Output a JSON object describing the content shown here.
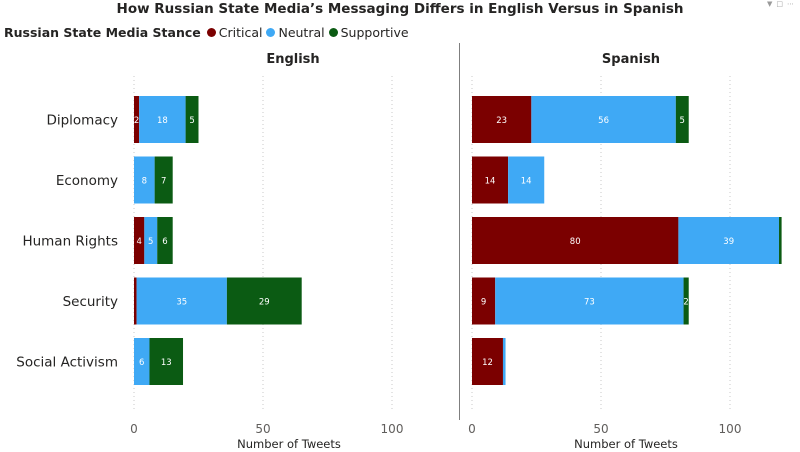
{
  "chart_data": {
    "type": "bar",
    "orientation": "horizontal",
    "stacked": true,
    "title": "How Russian State Media’s Messaging Differs in English Versus in Spanish",
    "legend": {
      "title": "Russian State Media Stance",
      "placement": "top-left",
      "entries": [
        "Critical",
        "Neutral",
        "Supportive"
      ]
    },
    "colors": {
      "Critical": "#7b0000",
      "Neutral": "#3fa9f5",
      "Supportive": "#0b5b13"
    },
    "categories": [
      "Diplomacy",
      "Economy",
      "Human Rights",
      "Security",
      "Social Activism"
    ],
    "xlabel": "Number of Tweets",
    "xlim": [
      0,
      120
    ],
    "xticks": [
      0,
      50,
      100
    ],
    "xtick_labels": [
      "0",
      "50",
      "100"
    ],
    "gridlines": "vertical-dotted",
    "panels": [
      {
        "title": "English",
        "series": [
          {
            "name": "Critical",
            "values": [
              2,
              0,
              4,
              1,
              0
            ],
            "labels": [
              "2",
              "",
              "4",
              "",
              ""
            ]
          },
          {
            "name": "Neutral",
            "values": [
              18,
              8,
              5,
              35,
              6
            ],
            "labels": [
              "18",
              "8",
              "5",
              "35",
              "6"
            ]
          },
          {
            "name": "Supportive",
            "values": [
              5,
              7,
              6,
              29,
              13
            ],
            "labels": [
              "5",
              "7",
              "6",
              "29",
              "13"
            ]
          }
        ]
      },
      {
        "title": "Spanish",
        "series": [
          {
            "name": "Critical",
            "values": [
              23,
              14,
              80,
              9,
              12
            ],
            "labels": [
              "23",
              "14",
              "80",
              "9",
              "12"
            ]
          },
          {
            "name": "Neutral",
            "values": [
              56,
              14,
              39,
              73,
              1
            ],
            "labels": [
              "56",
              "14",
              "39",
              "73",
              ""
            ]
          },
          {
            "name": "Supportive",
            "values": [
              5,
              0,
              1,
              2,
              0
            ],
            "labels": [
              "5",
              "",
              "",
              "2",
              ""
            ]
          }
        ]
      }
    ]
  }
}
